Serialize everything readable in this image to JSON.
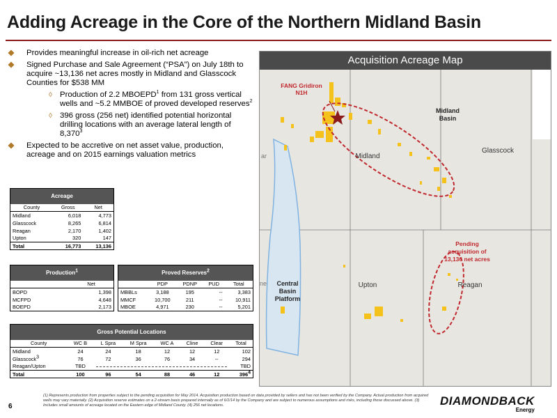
{
  "title": "Adding Acreage in the Core of the Northern Midland Basin",
  "bullets": {
    "b1": "Provides meaningful increase in oil-rich net acreage",
    "b2": "Signed Purchase and Sale Agreement (“PSA”) on July 18th to acquire ~13,136 net acres mostly in Midland and Glasscock Counties for $538 MM",
    "s1_pre": "Production of 2.2 MBOEPD",
    "s1_sup": "1",
    "s1_post": " from 131 gross vertical wells and ~5.2 MMBOE of proved developed reserves",
    "s1_sup2": "2",
    "s2_pre": "396 gross (256 net) identified potential horizontal drilling locations with an average lateral length of 8,370",
    "s2_sup": "3",
    "b3": "Expected to be accretive on net asset value, production, acreage and on 2015 earnings valuation metrics"
  },
  "acreage": {
    "title": "Acreage",
    "cols": [
      "County",
      "Gross",
      "Net"
    ],
    "rows": [
      [
        "Midland",
        "6,018",
        "4,773"
      ],
      [
        "Glasscock",
        "8,265",
        "6,814"
      ],
      [
        "Reagan",
        "2,170",
        "1,402"
      ],
      [
        "Upton",
        "320",
        "147"
      ]
    ],
    "total": [
      "Total",
      "16,773",
      "13,136"
    ]
  },
  "production": {
    "title": "Production",
    "title_sup": "1",
    "col": "Net",
    "rows": [
      [
        "BOPD",
        "1,398"
      ],
      [
        "MCFPD",
        "4,648"
      ],
      [
        "BOEPD",
        "2,173"
      ]
    ]
  },
  "reserves": {
    "title": "Proved Reserves",
    "title_sup": "2",
    "cols": [
      "",
      "PDP",
      "PDNP",
      "PUD",
      "Total"
    ],
    "rows": [
      [
        "MBBLs",
        "3,188",
        "195",
        "--",
        "3,383"
      ],
      [
        "MMCF",
        "10,700",
        "211",
        "--",
        "10,911"
      ],
      [
        "MBOE",
        "4,971",
        "230",
        "--",
        "5,201"
      ]
    ]
  },
  "locations": {
    "title": "Gross Potential Locations",
    "cols": [
      "County",
      "WC B",
      "L Spra",
      "M Spra",
      "WC A",
      "Cline",
      "Clear",
      "Total"
    ],
    "rows": [
      [
        "Midland",
        "24",
        "24",
        "18",
        "12",
        "12",
        "12",
        "102"
      ],
      [
        "Glasscock",
        "76",
        "72",
        "36",
        "76",
        "34",
        "--",
        "294"
      ]
    ],
    "glasscock_sup": "3",
    "reagan_label": "Reagan/Upton",
    "reagan_first": "TBD",
    "reagan_total": "TBD",
    "total": [
      "Total",
      "100",
      "96",
      "54",
      "88",
      "46",
      "12",
      "396"
    ],
    "total_sup": "4"
  },
  "map": {
    "title": "Acquisition Acreage Map",
    "labels": {
      "fang": "FANG Gridiron",
      "fang2": "N1H",
      "midland_basin": "Midland",
      "midland_basin2": "Basin",
      "midland": "Midland",
      "glasscock": "Glasscock",
      "pending1": "Pending",
      "pending2": "acquisition of",
      "pending3": "13,136 net acres",
      "central1": "Central",
      "central2": "Basin",
      "central3": "Platform",
      "upton": "Upton",
      "reagan": "Reagan",
      "edge_left1": "ar",
      "edge_left2": "ne"
    },
    "colors": {
      "acreage": "#f5c21b",
      "red": "#c0272d",
      "platform": "#7fb2e0",
      "county_line": "#666666"
    }
  },
  "footnote": "(1) Represents production from properties subject to the pending acquisition for May 2014. Acquisition production based on data provided by sellers and has not been verified by the Company. Actual production from acquired wells may vary materially. (2) Acquisition reserve estimates on a 2-stream basis prepared internally as of 6/1/14 by the Company and are subject to numerous assumptions and risks, including those discussed above. (3) Includes small amounts of acreage located on the Eastern edge of Midland County. (4) 256 net locations.",
  "page_number": "6",
  "logo": {
    "name": "DIAMONDBACK",
    "sub": "Energy"
  }
}
